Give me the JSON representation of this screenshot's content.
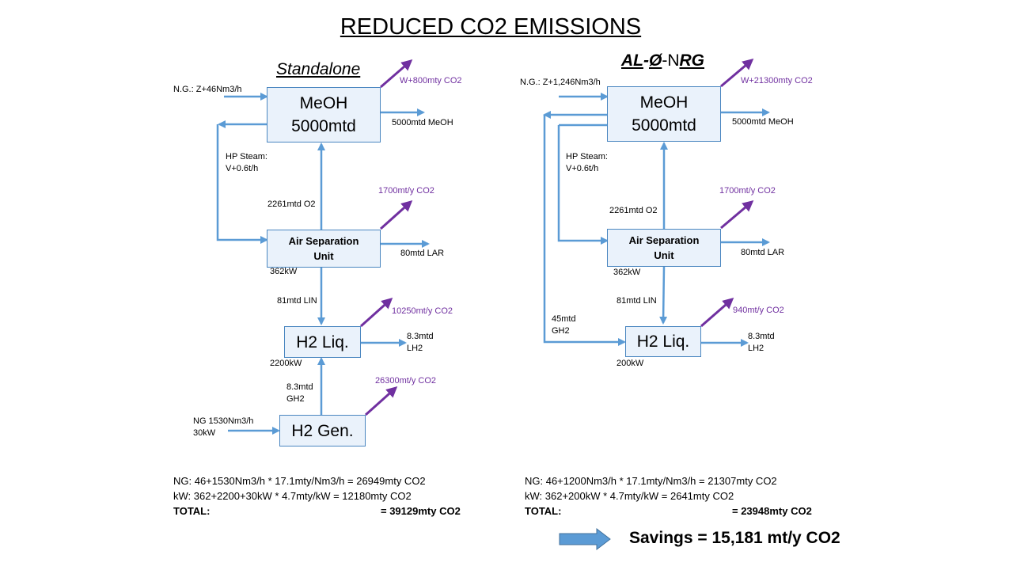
{
  "title": "REDUCED CO2 EMISSIONS",
  "left": {
    "subtitle": "Standalone",
    "meoh_box": [
      "MeOH",
      "5000mtd"
    ],
    "asu_box": [
      "Air Separation",
      "Unit"
    ],
    "h2liq_box": "H2 Liq.",
    "h2gen_box": "H2 Gen.",
    "ng_in": "N.G.: Z+46Nm3/h",
    "meoh_co2": "W+800mty CO2",
    "meoh_out": "5000mtd MeOH",
    "hp_steam": [
      "HP Steam:",
      "V+0.6t/h"
    ],
    "o2": "2261mtd O2",
    "asu_co2": "1700mt/y CO2",
    "asu_lar": "80mtd LAR",
    "asu_kw": "362kW",
    "lin": "81mtd LIN",
    "liq_co2": "10250mt/y CO2",
    "lh2": [
      "8.3mtd",
      "LH2"
    ],
    "liq_kw": "2200kW",
    "gh2": [
      "8.3mtd",
      "GH2"
    ],
    "gen_co2": "26300mt/y CO2",
    "ng_gen": [
      "NG 1530Nm3/h",
      "30kW"
    ],
    "calc_ng": "NG: 46+1530Nm3/h  * 17.1mty/Nm3/h  = 26949mty CO2",
    "calc_kw": "kW:  362+2200+30kW  * 4.7mty/kW       = 12180mty  CO2",
    "total_label": "TOTAL:",
    "total_value": "= 39129mty CO2"
  },
  "right": {
    "subtitle_parts": [
      "AL",
      "-",
      "Ø",
      "-N",
      "RG"
    ],
    "meoh_box": [
      "MeOH",
      "5000mtd"
    ],
    "asu_box": [
      "Air Separation",
      "Unit"
    ],
    "h2liq_box": "H2 Liq.",
    "ng_in": "N.G.:  Z+1,246Nm3/h",
    "meoh_co2": "W+21300mty CO2",
    "meoh_out": "5000mtd MeOH",
    "hp_steam": [
      "HP Steam:",
      "V+0.6t/h"
    ],
    "o2": "2261mtd O2",
    "asu_co2": "1700mt/y CO2",
    "asu_lar": "80mtd LAR",
    "asu_kw": "362kW",
    "lin": "81mtd LIN",
    "gh2": [
      "45mtd",
      "GH2"
    ],
    "liq_co2": "940mt/y CO2",
    "lh2": [
      "8.3mtd",
      "LH2"
    ],
    "liq_kw": "200kW",
    "calc_ng": "NG: 46+1200Nm3/h  * 17.1mty/Nm3/h  = 21307mty CO2",
    "calc_kw": "kW:  362+200kW * 4.7mty/kW                = 2641mty  CO2",
    "total_label": "TOTAL:",
    "total_value": "= 23948mty CO2"
  },
  "savings": "Savings = 15,181 mt/y CO2",
  "colors": {
    "box_border": "#4a86c0",
    "box_fill": "#eaf2fb",
    "flow": "#5b9bd5",
    "co2": "#7030a0"
  }
}
